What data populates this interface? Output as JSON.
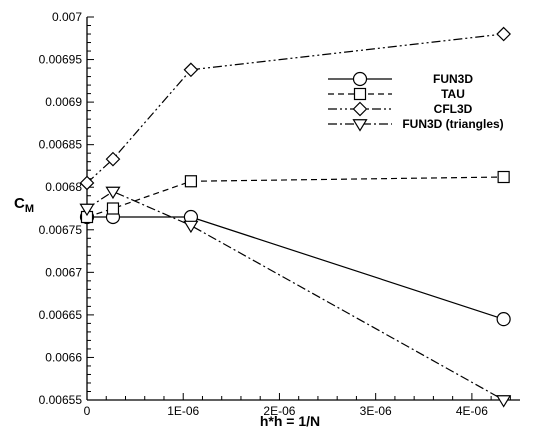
{
  "chart_data": {
    "type": "line",
    "xlabel": "h*h = 1/N",
    "ylabel_main": "C",
    "ylabel_sub": "M",
    "xlim": [
      0,
      4.5e-06
    ],
    "ylim": [
      0.00655,
      0.007
    ],
    "x_ticks": [
      {
        "value": 0,
        "label": "0"
      },
      {
        "value": 1e-06,
        "label": "1E-06"
      },
      {
        "value": 2e-06,
        "label": "2E-06"
      },
      {
        "value": 3e-06,
        "label": "3E-06"
      },
      {
        "value": 4e-06,
        "label": "4E-06"
      }
    ],
    "y_ticks": [
      {
        "value": 0.00655,
        "label": "0.00655"
      },
      {
        "value": 0.0066,
        "label": "0.0066"
      },
      {
        "value": 0.00665,
        "label": "0.00665"
      },
      {
        "value": 0.0067,
        "label": "0.0067"
      },
      {
        "value": 0.00675,
        "label": "0.00675"
      },
      {
        "value": 0.0068,
        "label": "0.0068"
      },
      {
        "value": 0.00685,
        "label": "0.00685"
      },
      {
        "value": 0.0069,
        "label": "0.0069"
      },
      {
        "value": 0.00695,
        "label": "0.00695"
      },
      {
        "value": 0.007,
        "label": "0.007"
      }
    ],
    "grid": false,
    "legend_position": "top-right",
    "series": [
      {
        "name": "FUN3D",
        "marker": "circle",
        "line_style": "solid",
        "points": [
          {
            "x": 0,
            "y": 0.006765
          },
          {
            "x": 2.7e-07,
            "y": 0.006765
          },
          {
            "x": 1.08e-06,
            "y": 0.006765
          },
          {
            "x": 4.33e-06,
            "y": 0.006645
          }
        ]
      },
      {
        "name": "TAU",
        "marker": "square",
        "line_style": "dashed",
        "points": [
          {
            "x": 0,
            "y": 0.006765
          },
          {
            "x": 2.7e-07,
            "y": 0.006775
          },
          {
            "x": 1.08e-06,
            "y": 0.006807
          },
          {
            "x": 4.33e-06,
            "y": 0.006812
          }
        ]
      },
      {
        "name": "CFL3D",
        "marker": "diamond",
        "line_style": "dashdotdot",
        "points": [
          {
            "x": 0,
            "y": 0.006805
          },
          {
            "x": 2.7e-07,
            "y": 0.006833
          },
          {
            "x": 1.08e-06,
            "y": 0.006938
          },
          {
            "x": 4.33e-06,
            "y": 0.00698
          }
        ]
      },
      {
        "name": "FUN3D (triangles)",
        "marker": "triangle-down",
        "line_style": "dashdot",
        "points": [
          {
            "x": 0,
            "y": 0.006775
          },
          {
            "x": 2.7e-07,
            "y": 0.006795
          },
          {
            "x": 1.08e-06,
            "y": 0.006755
          },
          {
            "x": 4.33e-06,
            "y": 0.00655
          }
        ]
      }
    ]
  }
}
